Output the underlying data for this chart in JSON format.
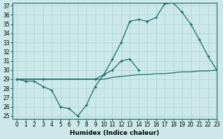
{
  "bg_color": "#cce8e8",
  "line_color": "#1a6b6b",
  "grid_color": "#aad4d4",
  "xlabel": "Humidex (Indice chaleur)",
  "ylim": [
    25,
    37
  ],
  "xlim": [
    -0.5,
    23
  ],
  "yticks": [
    25,
    26,
    27,
    28,
    29,
    30,
    31,
    32,
    33,
    34,
    35,
    36,
    37
  ],
  "xticks": [
    0,
    1,
    2,
    3,
    4,
    5,
    6,
    7,
    8,
    9,
    10,
    11,
    12,
    13,
    14,
    15,
    16,
    17,
    18,
    19,
    20,
    21,
    22,
    23
  ],
  "line1_x": [
    0,
    1,
    2,
    3,
    4,
    5,
    6,
    7,
    8,
    9,
    10,
    11,
    12,
    13,
    14,
    15,
    16,
    17,
    18,
    19,
    20,
    21,
    22,
    23
  ],
  "line1_y": [
    29,
    29,
    29,
    29,
    29,
    29,
    29,
    29,
    29,
    29,
    29,
    29.2,
    29.3,
    29.4,
    29.5,
    29.5,
    29.6,
    29.6,
    29.7,
    29.8,
    29.8,
    29.9,
    29.9,
    30.0
  ],
  "line2_x": [
    0,
    1,
    2,
    3,
    4,
    5,
    6,
    7,
    8,
    9,
    10,
    11,
    12,
    13,
    14
  ],
  "line2_y": [
    29,
    28.8,
    28.8,
    28.2,
    27.8,
    26.0,
    25.8,
    25.0,
    26.2,
    28.2,
    29.5,
    30.0,
    31.0,
    31.2,
    30.0
  ],
  "line3_x": [
    0,
    3,
    9,
    10,
    11,
    12,
    13,
    14,
    15,
    16,
    17,
    18,
    19,
    20,
    21,
    22,
    23
  ],
  "line3_y": [
    29,
    29,
    29,
    29.5,
    31.2,
    33.0,
    35.3,
    35.5,
    35.3,
    35.7,
    37.2,
    37.3,
    36.3,
    35.0,
    33.3,
    31.5,
    30.0
  ]
}
